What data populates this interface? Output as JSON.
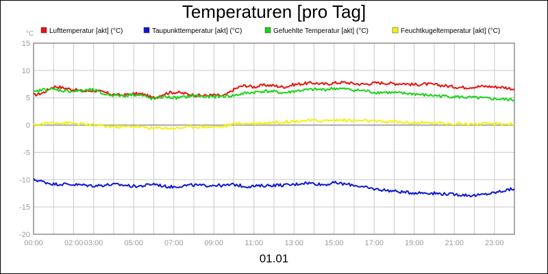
{
  "chart_data": {
    "type": "line",
    "title": "Temperaturen [pro Tag]",
    "ylabel": "°C",
    "xlabel": "01.01",
    "ylim": [
      -20,
      15
    ],
    "yticks": [
      -20,
      -15,
      -10,
      -5,
      0,
      5,
      10,
      15
    ],
    "xlim_hours": [
      0,
      24
    ],
    "x_tick_labels": [
      "00:00",
      "02:00",
      "03:00",
      "05:00",
      "07:00",
      "09:00",
      "11:00",
      "13:00",
      "15:00",
      "17:00",
      "19:00",
      "21:00",
      "23:00"
    ],
    "x_tick_hours": [
      0,
      2,
      3,
      5,
      7,
      9,
      11,
      13,
      15,
      17,
      19,
      21,
      23
    ],
    "grid": true,
    "legend_position": "top",
    "colors": {
      "Lufttemperatur [akt] (°C)": "#e8120e",
      "Taupunkttemperatur [akt] (°C)": "#0c16d6",
      "Gefuehlte Temperatur [akt] (°C)": "#18d418",
      "Feuchtkugeltemperatur [akt] (°C)": "#f2f20c"
    },
    "x": [
      0,
      0.5,
      1,
      1.5,
      2,
      2.5,
      3,
      3.5,
      4,
      4.5,
      5,
      5.5,
      6,
      6.5,
      7,
      7.5,
      8,
      8.5,
      9,
      9.5,
      10,
      10.5,
      11,
      11.5,
      12,
      12.5,
      13,
      13.5,
      14,
      14.5,
      15,
      15.5,
      16,
      16.5,
      17,
      17.5,
      18,
      18.5,
      19,
      19.5,
      20,
      20.5,
      21,
      21.5,
      22,
      22.5,
      23,
      23.5,
      24
    ],
    "series": [
      {
        "name": "Lufttemperatur [akt] (°C)",
        "values": [
          5.5,
          6.0,
          7.0,
          6.8,
          6.5,
          6.2,
          6.3,
          6.0,
          5.6,
          5.5,
          5.7,
          5.6,
          5.0,
          5.7,
          6.0,
          5.8,
          5.5,
          5.4,
          5.5,
          5.4,
          6.5,
          7.2,
          7.0,
          7.3,
          7.2,
          7.0,
          7.4,
          7.6,
          7.7,
          7.5,
          7.7,
          7.8,
          7.6,
          7.5,
          7.7,
          7.7,
          7.6,
          7.6,
          7.4,
          7.5,
          7.4,
          7.2,
          7.0,
          6.9,
          7.0,
          7.1,
          7.0,
          6.9,
          6.6
        ]
      },
      {
        "name": "Taupunkttemperatur [akt] (°C)",
        "values": [
          -10.0,
          -10.4,
          -10.8,
          -10.8,
          -10.9,
          -11.0,
          -11.1,
          -11.0,
          -10.9,
          -11.0,
          -11.2,
          -11.1,
          -10.8,
          -11.2,
          -11.3,
          -11.1,
          -11.0,
          -11.1,
          -11.0,
          -11.1,
          -10.9,
          -11.2,
          -11.2,
          -11.1,
          -11.0,
          -11.0,
          -10.9,
          -10.6,
          -10.7,
          -10.9,
          -10.6,
          -10.8,
          -11.0,
          -11.4,
          -11.7,
          -11.9,
          -12.1,
          -12.3,
          -12.4,
          -12.4,
          -12.5,
          -12.6,
          -12.7,
          -12.8,
          -12.9,
          -12.7,
          -12.4,
          -12.0,
          -11.7
        ]
      },
      {
        "name": "Gefuehlte Temperatur [akt] (°C)",
        "values": [
          6.0,
          6.5,
          6.5,
          6.3,
          6.2,
          6.3,
          6.4,
          5.7,
          5.5,
          5.4,
          5.6,
          5.3,
          4.8,
          5.2,
          5.0,
          5.1,
          5.4,
          5.2,
          5.2,
          5.3,
          5.4,
          5.8,
          6.0,
          6.2,
          6.1,
          5.9,
          6.2,
          6.4,
          6.5,
          6.5,
          6.7,
          6.6,
          6.4,
          6.3,
          6.0,
          6.0,
          5.9,
          5.8,
          5.7,
          5.5,
          5.4,
          5.3,
          5.2,
          5.1,
          5.0,
          4.9,
          4.8,
          4.7,
          4.6
        ]
      },
      {
        "name": "Feuchtkugeltemperatur [akt] (°C)",
        "values": [
          0.0,
          0.2,
          0.5,
          0.4,
          0.3,
          0.1,
          0.0,
          -0.2,
          -0.3,
          -0.3,
          -0.2,
          -0.4,
          -0.6,
          -0.5,
          -0.6,
          -0.4,
          -0.3,
          -0.3,
          -0.3,
          -0.2,
          0.2,
          0.3,
          0.3,
          0.4,
          0.5,
          0.6,
          0.7,
          0.8,
          0.8,
          0.8,
          0.9,
          0.9,
          0.8,
          0.8,
          0.7,
          0.6,
          0.6,
          0.5,
          0.4,
          0.4,
          0.4,
          0.3,
          0.3,
          0.2,
          0.2,
          0.2,
          0.2,
          0.2,
          0.2
        ]
      }
    ]
  }
}
